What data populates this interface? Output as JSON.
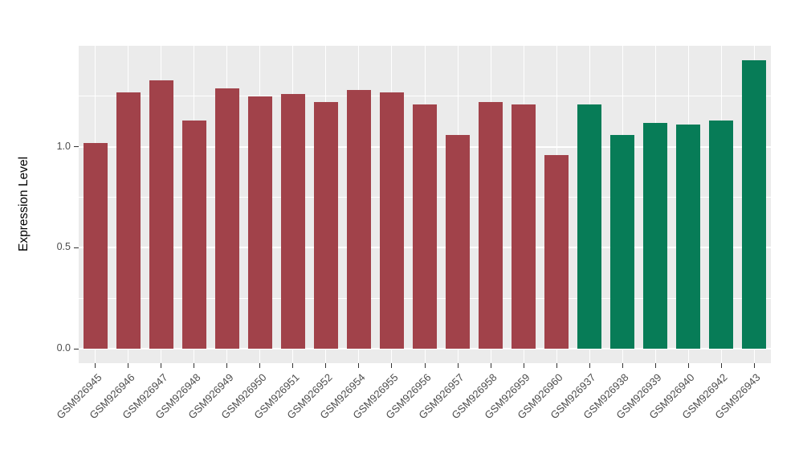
{
  "chart_data": {
    "type": "bar",
    "title": "",
    "xlabel": "",
    "ylabel": "Expression Level",
    "ylim": [
      0,
      1.5
    ],
    "yticks": [
      0,
      0.5,
      1
    ],
    "ytick_labels": [
      "0.0",
      "0.5",
      "1.0"
    ],
    "minor_gridlines": [
      0.25,
      0.75,
      1.25
    ],
    "grid": true,
    "legend": "none",
    "categories": [
      "GSM926945",
      "GSM926946",
      "GSM926947",
      "GSM926948",
      "GSM926949",
      "GSM926950",
      "GSM926951",
      "GSM926952",
      "GSM926954",
      "GSM926955",
      "GSM926956",
      "GSM926957",
      "GSM926958",
      "GSM926959",
      "GSM926960",
      "GSM926937",
      "GSM926938",
      "GSM926939",
      "GSM926940",
      "GSM926942",
      "GSM926943"
    ],
    "values": [
      1.02,
      1.27,
      1.33,
      1.13,
      1.29,
      1.25,
      1.26,
      1.22,
      1.28,
      1.27,
      1.21,
      1.06,
      1.22,
      1.21,
      0.96,
      1.21,
      1.06,
      1.12,
      1.11,
      1.13,
      1.43
    ],
    "bar_colors": [
      "#A1424A",
      "#A1424A",
      "#A1424A",
      "#A1424A",
      "#A1424A",
      "#A1424A",
      "#A1424A",
      "#A1424A",
      "#A1424A",
      "#A1424A",
      "#A1424A",
      "#A1424A",
      "#A1424A",
      "#A1424A",
      "#A1424A",
      "#077C57",
      "#077C57",
      "#077C57",
      "#077C57",
      "#077C57",
      "#077C57"
    ],
    "colors": {
      "group_red": "#A1424A",
      "group_green": "#077C57",
      "panel_background": "#EBEBEB",
      "gridline": "#FFFFFF",
      "tick": "#333333",
      "axis_text": "#4D4D4D",
      "axis_title": "#000000"
    }
  }
}
